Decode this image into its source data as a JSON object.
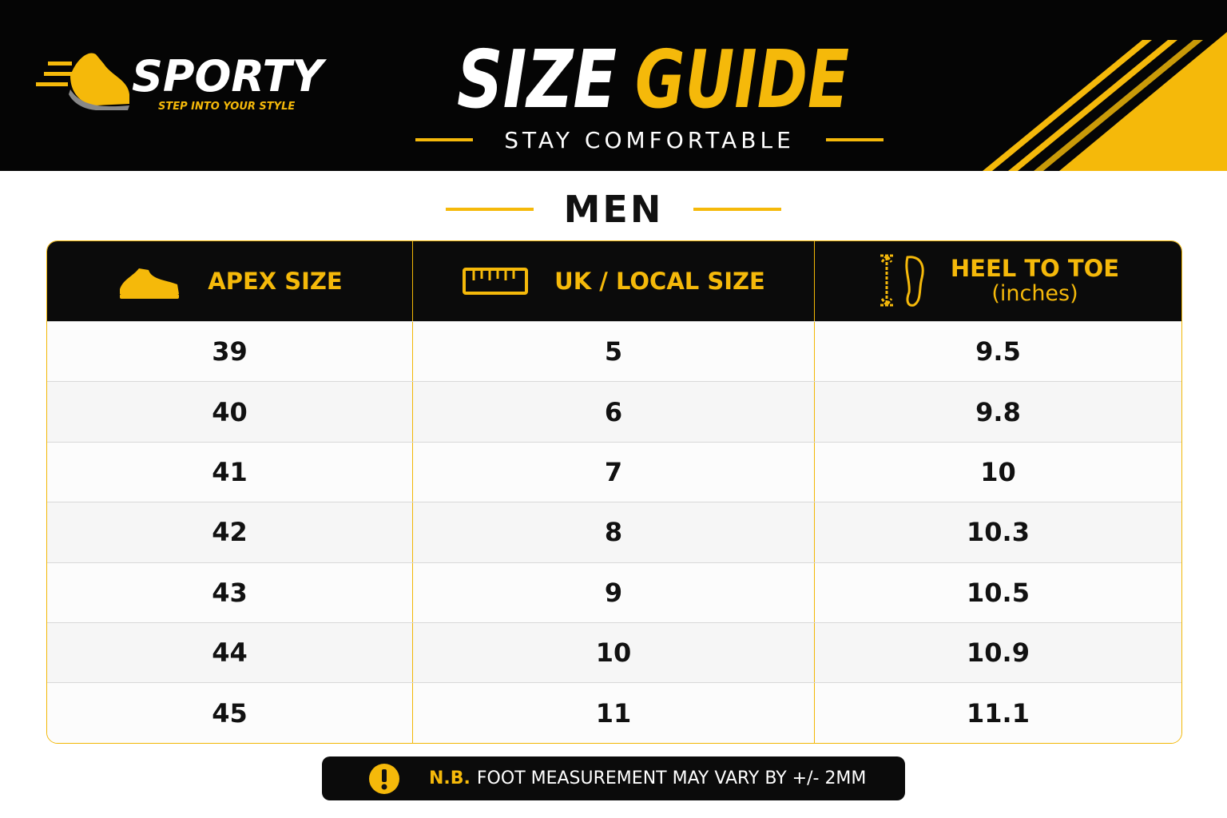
{
  "header": {
    "brand": "SPORTY",
    "tagline": "STEP INTO YOUR STYLE",
    "title_part1": "SIZE",
    "title_part2": "GUIDE",
    "subtitle": "STAY COMFORTABLE"
  },
  "section": "MEN",
  "table": {
    "columns": [
      {
        "label": "APEX SIZE"
      },
      {
        "label": "UK / LOCAL SIZE"
      },
      {
        "label": "HEEL TO TOE",
        "sublabel": "(inches)"
      }
    ],
    "rows": [
      [
        39,
        5,
        9.5
      ],
      [
        40,
        6,
        9.8
      ],
      [
        41,
        7,
        10
      ],
      [
        42,
        8,
        10.3
      ],
      [
        43,
        9,
        10.5
      ],
      [
        44,
        10,
        10.9
      ],
      [
        45,
        11,
        11.1
      ]
    ]
  },
  "note": {
    "prefix": "N.B.",
    "text": "FOOT MEASUREMENT MAY VARY BY +/- 2MM"
  }
}
